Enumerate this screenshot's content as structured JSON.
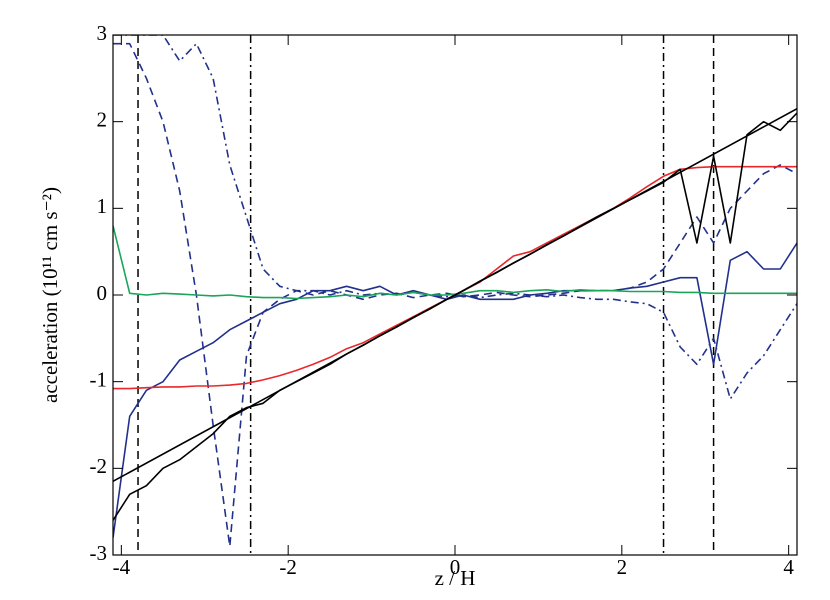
{
  "chart_data": {
    "type": "line",
    "xlabel": "z / H",
    "ylabel": "acceleration (10¹¹ cm s⁻²)",
    "xlim": [
      -4.1,
      4.1
    ],
    "ylim": [
      -3,
      3
    ],
    "xticks": [
      -4,
      -2,
      0,
      2,
      4
    ],
    "yticks": [
      -3,
      -2,
      -1,
      0,
      1,
      2,
      3
    ],
    "x": [
      -4.1,
      -3.9,
      -3.7,
      -3.5,
      -3.3,
      -3.1,
      -2.9,
      -2.7,
      -2.5,
      -2.3,
      -2.1,
      -1.9,
      -1.7,
      -1.5,
      -1.3,
      -1.1,
      -0.9,
      -0.7,
      -0.5,
      -0.3,
      -0.1,
      0.1,
      0.3,
      0.5,
      0.7,
      0.9,
      1.1,
      1.3,
      1.5,
      1.7,
      1.9,
      2.1,
      2.3,
      2.5,
      2.7,
      2.9,
      3.1,
      3.3,
      3.5,
      3.7,
      3.9,
      4.1
    ],
    "series": [
      {
        "color": "#22318c",
        "style": "dashdot",
        "values": [
          3.0,
          3.0,
          3.0,
          3.0,
          2.7,
          2.9,
          2.5,
          1.5,
          0.9,
          0.3,
          0.1,
          0.05,
          0.05,
          0.0,
          0.05,
          0.0,
          0.02,
          0.0,
          0.03,
          0.0,
          -0.02,
          0.0,
          -0.03,
          0.0,
          0.02,
          0.0,
          -0.02,
          0.0,
          -0.03,
          -0.05,
          -0.05,
          -0.08,
          -0.1,
          -0.2,
          -0.6,
          -0.8,
          -0.5,
          -1.2,
          -0.9,
          -0.7,
          -0.4,
          -0.1
        ]
      },
      {
        "color": "#22318c",
        "style": "dash",
        "values": [
          2.9,
          2.9,
          2.5,
          2.0,
          1.2,
          0.0,
          -1.5,
          -2.9,
          -0.7,
          -0.2,
          -0.05,
          0.05,
          0.0,
          0.05,
          0.0,
          -0.05,
          0.0,
          0.02,
          -0.03,
          0.0,
          0.02,
          -0.02,
          0.0,
          0.03,
          0.0,
          -0.02,
          0.0,
          0.02,
          0.05,
          0.05,
          0.05,
          0.08,
          0.15,
          0.3,
          0.6,
          0.9,
          0.6,
          1.0,
          1.2,
          1.4,
          1.5,
          1.4
        ]
      },
      {
        "color": "#22318c",
        "style": "solid",
        "values": [
          -2.8,
          -1.4,
          -1.1,
          -1.0,
          -0.75,
          -0.65,
          -0.55,
          -0.4,
          -0.3,
          -0.2,
          -0.1,
          -0.05,
          0.05,
          0.05,
          0.1,
          0.05,
          0.1,
          0.0,
          0.05,
          0.0,
          -0.05,
          0.0,
          -0.05,
          -0.05,
          -0.05,
          0.0,
          0.02,
          0.05,
          0.05,
          0.05,
          0.05,
          0.08,
          0.1,
          0.15,
          0.2,
          0.2,
          -0.8,
          0.4,
          0.5,
          0.3,
          0.3,
          0.6
        ]
      },
      {
        "color": "#1aa55a",
        "style": "solid",
        "values": [
          0.8,
          0.02,
          0.0,
          0.02,
          0.01,
          0.0,
          -0.01,
          0.0,
          -0.02,
          -0.03,
          -0.03,
          -0.04,
          -0.03,
          -0.02,
          0.0,
          -0.02,
          0.02,
          0.0,
          0.03,
          0.0,
          0.0,
          0.02,
          0.05,
          0.05,
          0.03,
          0.05,
          0.06,
          0.04,
          0.06,
          0.05,
          0.05,
          0.04,
          0.04,
          0.04,
          0.03,
          0.03,
          0.02,
          0.02,
          0.02,
          0.02,
          0.02,
          0.02
        ]
      },
      {
        "color": "#e8282a",
        "style": "solid",
        "values": [
          -1.08,
          -1.08,
          -1.07,
          -1.06,
          -1.06,
          -1.05,
          -1.05,
          -1.04,
          -1.02,
          -0.98,
          -0.93,
          -0.87,
          -0.8,
          -0.72,
          -0.62,
          -0.55,
          -0.45,
          -0.35,
          -0.25,
          -0.15,
          -0.05,
          0.05,
          0.15,
          0.3,
          0.45,
          0.5,
          0.6,
          0.7,
          0.8,
          0.9,
          1.0,
          1.12,
          1.25,
          1.37,
          1.45,
          1.47,
          1.48,
          1.48,
          1.48,
          1.48,
          1.48,
          1.48
        ]
      },
      {
        "color": "#000000",
        "style": "solid",
        "values": [
          -2.6,
          -2.3,
          -2.2,
          -2.0,
          -1.9,
          -1.75,
          -1.6,
          -1.4,
          -1.3,
          -1.25,
          -1.1,
          -1.0,
          -0.9,
          -0.8,
          -0.68,
          -0.58,
          -0.47,
          -0.37,
          -0.26,
          -0.16,
          -0.05,
          0.05,
          0.16,
          0.26,
          0.37,
          0.47,
          0.58,
          0.68,
          0.79,
          0.9,
          1.0,
          1.1,
          1.2,
          1.3,
          1.45,
          0.6,
          1.6,
          0.6,
          1.85,
          2.0,
          1.9,
          2.1
        ]
      },
      {
        "color": "#000000",
        "style": "solid",
        "x": [
          -4.1,
          4.1
        ],
        "values": [
          -2.15,
          2.15
        ]
      }
    ],
    "vlines": [
      {
        "x": -3.8,
        "style": "dash"
      },
      {
        "x": -2.45,
        "style": "dashdot"
      },
      {
        "x": 2.5,
        "style": "dashdot"
      },
      {
        "x": 3.1,
        "style": "dash"
      }
    ]
  }
}
